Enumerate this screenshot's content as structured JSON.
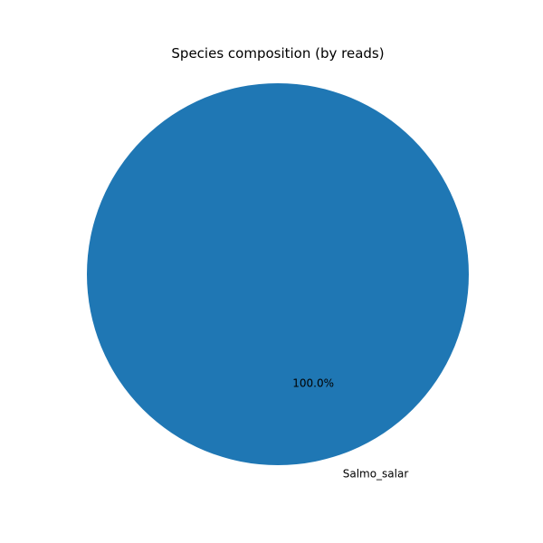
{
  "chart_data": {
    "type": "pie",
    "title": "Species composition (by reads)",
    "slices": [
      {
        "label": "Salmo_salar",
        "value": 100.0,
        "pct_label": "100.0%",
        "color": "#1f77b4"
      }
    ]
  }
}
